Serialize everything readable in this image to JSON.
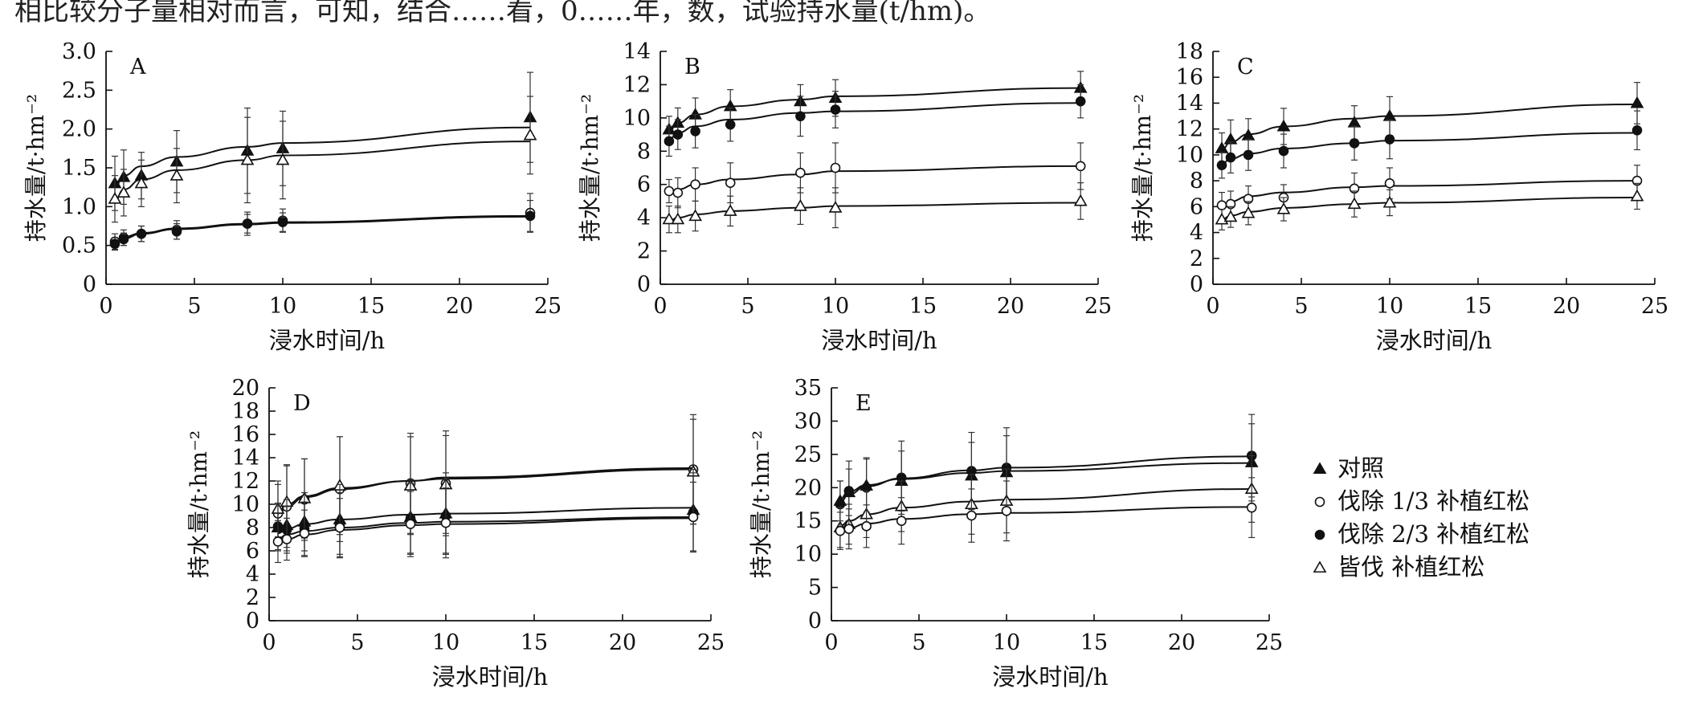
{
  "caption_fragment": "相比较分子量相对而言，可知，结合……看，0……年，数，试验持水量(t/hm)。",
  "legend": {
    "items": [
      {
        "marker": "triangle-filled",
        "label": "对照"
      },
      {
        "marker": "circle-open",
        "label": "伐除 1/3 补植红松"
      },
      {
        "marker": "circle-filled",
        "label": "伐除 2/3 补植红松"
      },
      {
        "marker": "triangle-open",
        "label": "皆伐 补植红松"
      }
    ]
  },
  "chart_data": [
    {
      "type": "scatter",
      "panel": "A",
      "xlabel": "浸水时间/h",
      "ylabel": "持水量/t·hm⁻²",
      "xlim": [
        0,
        25
      ],
      "ylim": [
        0,
        3.0
      ],
      "xticks": [
        "0",
        "5",
        "10",
        "15",
        "20",
        "25"
      ],
      "yticks": [
        "0",
        "0.5",
        "1.0",
        "1.5",
        "2.0",
        "2.5",
        "3.0"
      ],
      "x": [
        0.5,
        1,
        2,
        4,
        8,
        10,
        24
      ],
      "series": [
        {
          "marker": "triangle-filled",
          "values": [
            1.3,
            1.38,
            1.4,
            1.58,
            1.72,
            1.75,
            2.15
          ],
          "errors": [
            0.35,
            0.35,
            0.3,
            0.4,
            0.55,
            0.48,
            0.58
          ],
          "fit": [
            1.25,
            1.4,
            1.52,
            1.64,
            1.77,
            1.82,
            2.02
          ]
        },
        {
          "marker": "triangle-open",
          "values": [
            1.1,
            1.18,
            1.3,
            1.4,
            1.6,
            1.6,
            1.92
          ],
          "errors": [
            0.3,
            0.3,
            0.3,
            0.35,
            0.55,
            0.5,
            0.5
          ],
          "fit": [
            1.08,
            1.22,
            1.35,
            1.47,
            1.6,
            1.66,
            1.84
          ]
        },
        {
          "marker": "circle-open",
          "values": [
            0.55,
            0.6,
            0.65,
            0.7,
            0.78,
            0.82,
            0.92
          ],
          "errors": [
            0.1,
            0.1,
            0.1,
            0.12,
            0.15,
            0.15,
            0.25
          ],
          "fit": [
            0.55,
            0.61,
            0.66,
            0.72,
            0.78,
            0.8,
            0.88
          ]
        },
        {
          "marker": "circle-filled",
          "values": [
            0.52,
            0.58,
            0.65,
            0.68,
            0.78,
            0.8,
            0.88
          ],
          "errors": [
            0.08,
            0.08,
            0.1,
            0.1,
            0.12,
            0.12,
            0.2
          ],
          "fit": [
            0.53,
            0.59,
            0.65,
            0.71,
            0.77,
            0.79,
            0.87
          ]
        }
      ]
    },
    {
      "type": "scatter",
      "panel": "B",
      "xlabel": "浸水时间/h",
      "ylabel": "持水量/t·hm⁻²",
      "xlim": [
        0,
        25
      ],
      "ylim": [
        0,
        14
      ],
      "xticks": [
        "0",
        "5",
        "10",
        "15",
        "20",
        "25"
      ],
      "yticks": [
        "0",
        "2",
        "4",
        "6",
        "8",
        "10",
        "12",
        "14"
      ],
      "x": [
        0.5,
        1,
        2,
        4,
        8,
        10,
        24
      ],
      "series": [
        {
          "marker": "triangle-filled",
          "values": [
            9.3,
            9.7,
            10.2,
            10.7,
            11.0,
            11.2,
            11.8
          ],
          "errors": [
            0.8,
            0.9,
            1.0,
            1.0,
            1.0,
            1.1,
            1.0
          ],
          "fit": [
            9.2,
            9.7,
            10.2,
            10.7,
            11.1,
            11.3,
            11.8
          ]
        },
        {
          "marker": "circle-filled",
          "values": [
            8.6,
            9.0,
            9.2,
            9.6,
            10.1,
            10.5,
            11.0
          ],
          "errors": [
            0.9,
            0.9,
            1.0,
            1.0,
            1.2,
            1.1,
            1.0
          ],
          "fit": [
            8.7,
            9.1,
            9.5,
            9.9,
            10.3,
            10.4,
            10.9
          ]
        },
        {
          "marker": "circle-open",
          "values": [
            5.6,
            5.5,
            6.0,
            6.1,
            6.7,
            7.0,
            7.1
          ],
          "errors": [
            0.7,
            0.9,
            1.0,
            1.2,
            1.2,
            1.5,
            1.4
          ],
          "fit": [
            5.4,
            5.7,
            6.0,
            6.3,
            6.6,
            6.8,
            7.1
          ]
        },
        {
          "marker": "triangle-open",
          "values": [
            3.9,
            3.9,
            4.1,
            4.4,
            4.7,
            4.6,
            5.0
          ],
          "errors": [
            0.8,
            0.8,
            0.9,
            0.9,
            1.1,
            1.2,
            1.1
          ],
          "fit": [
            3.8,
            4.0,
            4.2,
            4.4,
            4.6,
            4.7,
            4.9
          ]
        }
      ]
    },
    {
      "type": "scatter",
      "panel": "C",
      "xlabel": "浸水时间/h",
      "ylabel": "持水量/t·hm⁻²",
      "xlim": [
        0,
        25
      ],
      "ylim": [
        0,
        18
      ],
      "xticks": [
        "0",
        "5",
        "10",
        "15",
        "20",
        "25"
      ],
      "yticks": [
        "0",
        "2",
        "4",
        "6",
        "8",
        "10",
        "12",
        "14",
        "16",
        "18"
      ],
      "x": [
        0.5,
        1,
        2,
        4,
        8,
        10,
        24
      ],
      "series": [
        {
          "marker": "triangle-filled",
          "values": [
            10.5,
            11.2,
            11.5,
            12.2,
            12.5,
            13.0,
            14.0
          ],
          "errors": [
            1.2,
            1.5,
            1.3,
            1.4,
            1.3,
            1.5,
            1.6
          ],
          "fit": [
            10.4,
            11.0,
            11.6,
            12.2,
            12.8,
            13.0,
            13.9
          ]
        },
        {
          "marker": "circle-filled",
          "values": [
            9.2,
            9.8,
            10.0,
            10.3,
            10.9,
            11.2,
            11.9
          ],
          "errors": [
            1.0,
            1.2,
            1.2,
            1.3,
            1.3,
            1.5,
            1.5
          ],
          "fit": [
            9.3,
            9.7,
            10.1,
            10.5,
            10.9,
            11.1,
            11.7
          ]
        },
        {
          "marker": "circle-open",
          "values": [
            6.1,
            6.2,
            6.6,
            6.7,
            7.4,
            7.8,
            8.0
          ],
          "errors": [
            1.0,
            1.0,
            1.0,
            1.0,
            1.2,
            1.2,
            1.2
          ],
          "fit": [
            6.0,
            6.4,
            6.8,
            7.1,
            7.5,
            7.6,
            8.0
          ]
        },
        {
          "marker": "triangle-open",
          "values": [
            5.0,
            5.2,
            5.5,
            5.8,
            6.2,
            6.3,
            6.8
          ],
          "errors": [
            0.8,
            0.8,
            0.9,
            0.9,
            1.0,
            1.0,
            1.0
          ],
          "fit": [
            5.0,
            5.3,
            5.6,
            5.9,
            6.2,
            6.3,
            6.7
          ]
        }
      ]
    },
    {
      "type": "scatter",
      "panel": "D",
      "xlabel": "浸水时间/h",
      "ylabel": "持水量/t·hm⁻²",
      "xlim": [
        0,
        25
      ],
      "ylim": [
        0,
        20
      ],
      "xticks": [
        "0",
        "5",
        "10",
        "15",
        "20",
        "25"
      ],
      "yticks": [
        "0",
        "2",
        "4",
        "6",
        "8",
        "10",
        "12",
        "14",
        "16",
        "18",
        "20"
      ],
      "x": [
        0.5,
        1,
        2,
        4,
        8,
        10,
        24
      ],
      "series": [
        {
          "marker": "circle-open",
          "values": [
            9.2,
            9.8,
            10.4,
            11.3,
            11.8,
            11.8,
            13.0
          ],
          "errors": [
            2.5,
            3.5,
            3.5,
            4.5,
            4.3,
            4.5,
            4.7
          ],
          "fit": [
            9.0,
            9.8,
            10.6,
            11.3,
            12.0,
            12.2,
            13.0
          ]
        },
        {
          "marker": "triangle-open",
          "values": [
            9.6,
            10.2,
            10.5,
            11.6,
            11.6,
            11.7,
            12.8
          ],
          "errors": [
            2.4,
            3.2,
            3.4,
            4.2,
            4.2,
            4.2,
            4.5
          ],
          "fit": [
            9.2,
            10.0,
            10.7,
            11.4,
            12.0,
            12.3,
            13.1
          ]
        },
        {
          "marker": "triangle-filled",
          "values": [
            8.0,
            8.2,
            8.5,
            8.7,
            8.9,
            9.2,
            9.5
          ],
          "errors": [
            2.0,
            2.2,
            2.5,
            3.0,
            3.2,
            3.5,
            3.5
          ],
          "fit": [
            7.5,
            7.9,
            8.3,
            8.7,
            9.1,
            9.2,
            9.7
          ]
        },
        {
          "marker": "circle-filled",
          "values": [
            8.1,
            7.8,
            7.9,
            8.2,
            8.8,
            9.0,
            9.3
          ],
          "errors": [
            2.0,
            2.0,
            2.3,
            2.8,
            3.0,
            3.2,
            3.4
          ],
          "fit": [
            7.0,
            7.4,
            7.7,
            8.0,
            8.4,
            8.5,
            8.9
          ]
        },
        {
          "marker": "circle-open",
          "values": [
            6.8,
            7.0,
            7.5,
            8.0,
            8.3,
            8.4,
            8.9
          ],
          "errors": [
            1.8,
            1.8,
            2.0,
            2.5,
            2.8,
            3.0,
            3.0
          ],
          "fit": [
            6.6,
            7.0,
            7.4,
            7.8,
            8.2,
            8.3,
            8.8
          ]
        }
      ]
    },
    {
      "type": "scatter",
      "panel": "E",
      "xlabel": "浸水时间/h",
      "ylabel": "持水量/t·hm⁻²",
      "xlim": [
        0,
        25
      ],
      "ylim": [
        0,
        35
      ],
      "xticks": [
        "0",
        "5",
        "10",
        "15",
        "20",
        "25"
      ],
      "yticks": [
        "0",
        "5",
        "10",
        "15",
        "20",
        "25",
        "30",
        "35"
      ],
      "x": [
        0.5,
        1,
        2,
        4,
        8,
        10,
        24
      ],
      "series": [
        {
          "marker": "circle-filled",
          "values": [
            17.5,
            19.5,
            20.0,
            21.5,
            22.5,
            23.0,
            24.8
          ],
          "errors": [
            3.5,
            4.5,
            4.5,
            5.5,
            5.8,
            6.0,
            6.2
          ],
          "fit": [
            17.8,
            19.0,
            20.2,
            21.4,
            22.6,
            23.0,
            24.7
          ]
        },
        {
          "marker": "triangle-filled",
          "values": [
            18.0,
            19.3,
            20.3,
            21.0,
            21.8,
            22.3,
            23.8
          ],
          "errors": [
            3.0,
            3.5,
            4.0,
            4.5,
            5.0,
            5.5,
            5.8
          ],
          "fit": [
            18.3,
            19.4,
            20.4,
            21.3,
            22.2,
            22.5,
            23.7
          ]
        },
        {
          "marker": "triangle-open",
          "values": [
            14.0,
            14.5,
            16.0,
            17.2,
            17.5,
            18.0,
            19.8
          ],
          "errors": [
            3.0,
            3.0,
            3.5,
            3.8,
            4.5,
            4.8,
            5.0
          ],
          "fit": [
            14.2,
            15.0,
            16.0,
            17.0,
            17.9,
            18.2,
            19.8
          ]
        },
        {
          "marker": "circle-open",
          "values": [
            13.5,
            13.8,
            14.2,
            15.0,
            15.8,
            16.5,
            17.0
          ],
          "errors": [
            2.8,
            3.0,
            3.2,
            3.5,
            4.0,
            4.5,
            4.5
          ],
          "fit": [
            13.2,
            13.9,
            14.6,
            15.3,
            16.0,
            16.2,
            17.1
          ]
        }
      ]
    }
  ]
}
